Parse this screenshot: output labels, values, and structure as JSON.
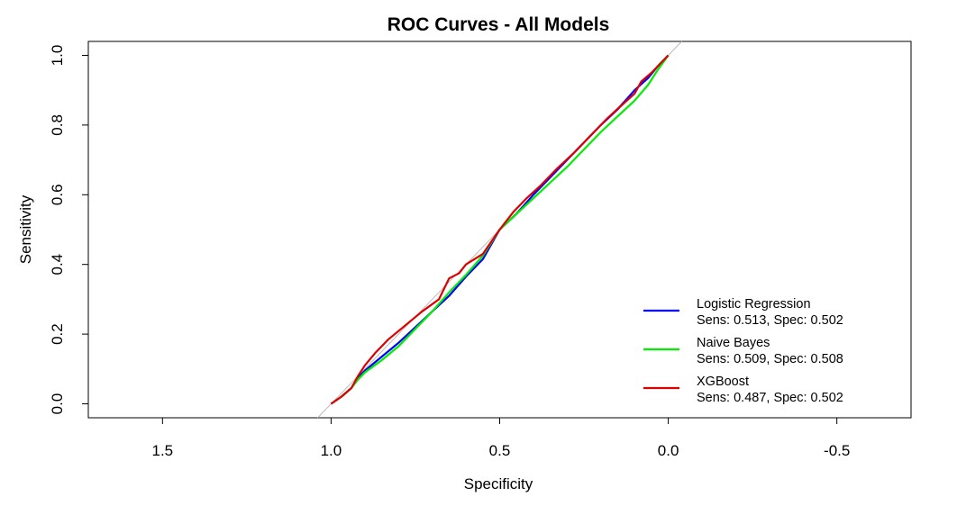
{
  "chart_data": {
    "type": "line",
    "title": "ROC Curves - All Models",
    "xlabel": "Specificity",
    "ylabel": "Sensitivity",
    "xlim": [
      1.72,
      -0.72
    ],
    "ylim": [
      -0.04,
      1.04
    ],
    "x_reversed": true,
    "x_ticks": [
      1.5,
      1.0,
      0.5,
      0.0,
      -0.5
    ],
    "x_tick_labels": [
      "1.5",
      "1.0",
      "0.5",
      "0.0",
      "-0.5"
    ],
    "y_ticks": [
      0.0,
      0.2,
      0.4,
      0.6,
      0.8,
      1.0
    ],
    "y_tick_labels": [
      "0.0",
      "0.2",
      "0.4",
      "0.6",
      "0.8",
      "1.0"
    ],
    "grid": false,
    "legend_position": "bottom-right",
    "reference_line": {
      "from": [
        1,
        0
      ],
      "to": [
        0,
        1
      ],
      "color": "#bbbbbb"
    },
    "series": [
      {
        "name": "Logistic Regression",
        "stat": "Sens: 0.513, Spec: 0.502",
        "color": "#0000ff",
        "points": [
          [
            1.0,
            0.0
          ],
          [
            0.97,
            0.02
          ],
          [
            0.94,
            0.045
          ],
          [
            0.92,
            0.075
          ],
          [
            0.9,
            0.095
          ],
          [
            0.85,
            0.135
          ],
          [
            0.8,
            0.175
          ],
          [
            0.75,
            0.22
          ],
          [
            0.7,
            0.265
          ],
          [
            0.65,
            0.31
          ],
          [
            0.6,
            0.365
          ],
          [
            0.55,
            0.415
          ],
          [
            0.5,
            0.5
          ],
          [
            0.45,
            0.545
          ],
          [
            0.4,
            0.6
          ],
          [
            0.35,
            0.65
          ],
          [
            0.3,
            0.7
          ],
          [
            0.25,
            0.75
          ],
          [
            0.2,
            0.8
          ],
          [
            0.15,
            0.845
          ],
          [
            0.1,
            0.9
          ],
          [
            0.06,
            0.935
          ],
          [
            0.03,
            0.97
          ],
          [
            0.0,
            1.0
          ]
        ]
      },
      {
        "name": "Naive Bayes",
        "stat": "Sens: 0.509, Spec: 0.508",
        "color": "#00ee00",
        "points": [
          [
            1.0,
            0.0
          ],
          [
            0.97,
            0.02
          ],
          [
            0.94,
            0.045
          ],
          [
            0.92,
            0.07
          ],
          [
            0.9,
            0.09
          ],
          [
            0.85,
            0.125
          ],
          [
            0.8,
            0.165
          ],
          [
            0.75,
            0.215
          ],
          [
            0.7,
            0.265
          ],
          [
            0.65,
            0.32
          ],
          [
            0.6,
            0.37
          ],
          [
            0.55,
            0.425
          ],
          [
            0.5,
            0.5
          ],
          [
            0.45,
            0.545
          ],
          [
            0.4,
            0.59
          ],
          [
            0.35,
            0.635
          ],
          [
            0.3,
            0.68
          ],
          [
            0.25,
            0.73
          ],
          [
            0.2,
            0.78
          ],
          [
            0.15,
            0.825
          ],
          [
            0.1,
            0.87
          ],
          [
            0.06,
            0.915
          ],
          [
            0.03,
            0.96
          ],
          [
            0.0,
            1.0
          ]
        ]
      },
      {
        "name": "XGBoost",
        "stat": "Sens: 0.487, Spec: 0.502",
        "color": "#dd0000",
        "points": [
          [
            1.0,
            0.0
          ],
          [
            0.97,
            0.02
          ],
          [
            0.94,
            0.045
          ],
          [
            0.92,
            0.08
          ],
          [
            0.9,
            0.11
          ],
          [
            0.87,
            0.145
          ],
          [
            0.83,
            0.185
          ],
          [
            0.78,
            0.225
          ],
          [
            0.73,
            0.265
          ],
          [
            0.68,
            0.3
          ],
          [
            0.65,
            0.36
          ],
          [
            0.62,
            0.375
          ],
          [
            0.6,
            0.4
          ],
          [
            0.55,
            0.43
          ],
          [
            0.5,
            0.5
          ],
          [
            0.46,
            0.55
          ],
          [
            0.42,
            0.59
          ],
          [
            0.38,
            0.625
          ],
          [
            0.33,
            0.675
          ],
          [
            0.28,
            0.72
          ],
          [
            0.23,
            0.77
          ],
          [
            0.18,
            0.82
          ],
          [
            0.14,
            0.855
          ],
          [
            0.1,
            0.89
          ],
          [
            0.08,
            0.925
          ],
          [
            0.05,
            0.95
          ],
          [
            0.02,
            0.98
          ],
          [
            0.0,
            1.0
          ]
        ]
      }
    ]
  }
}
